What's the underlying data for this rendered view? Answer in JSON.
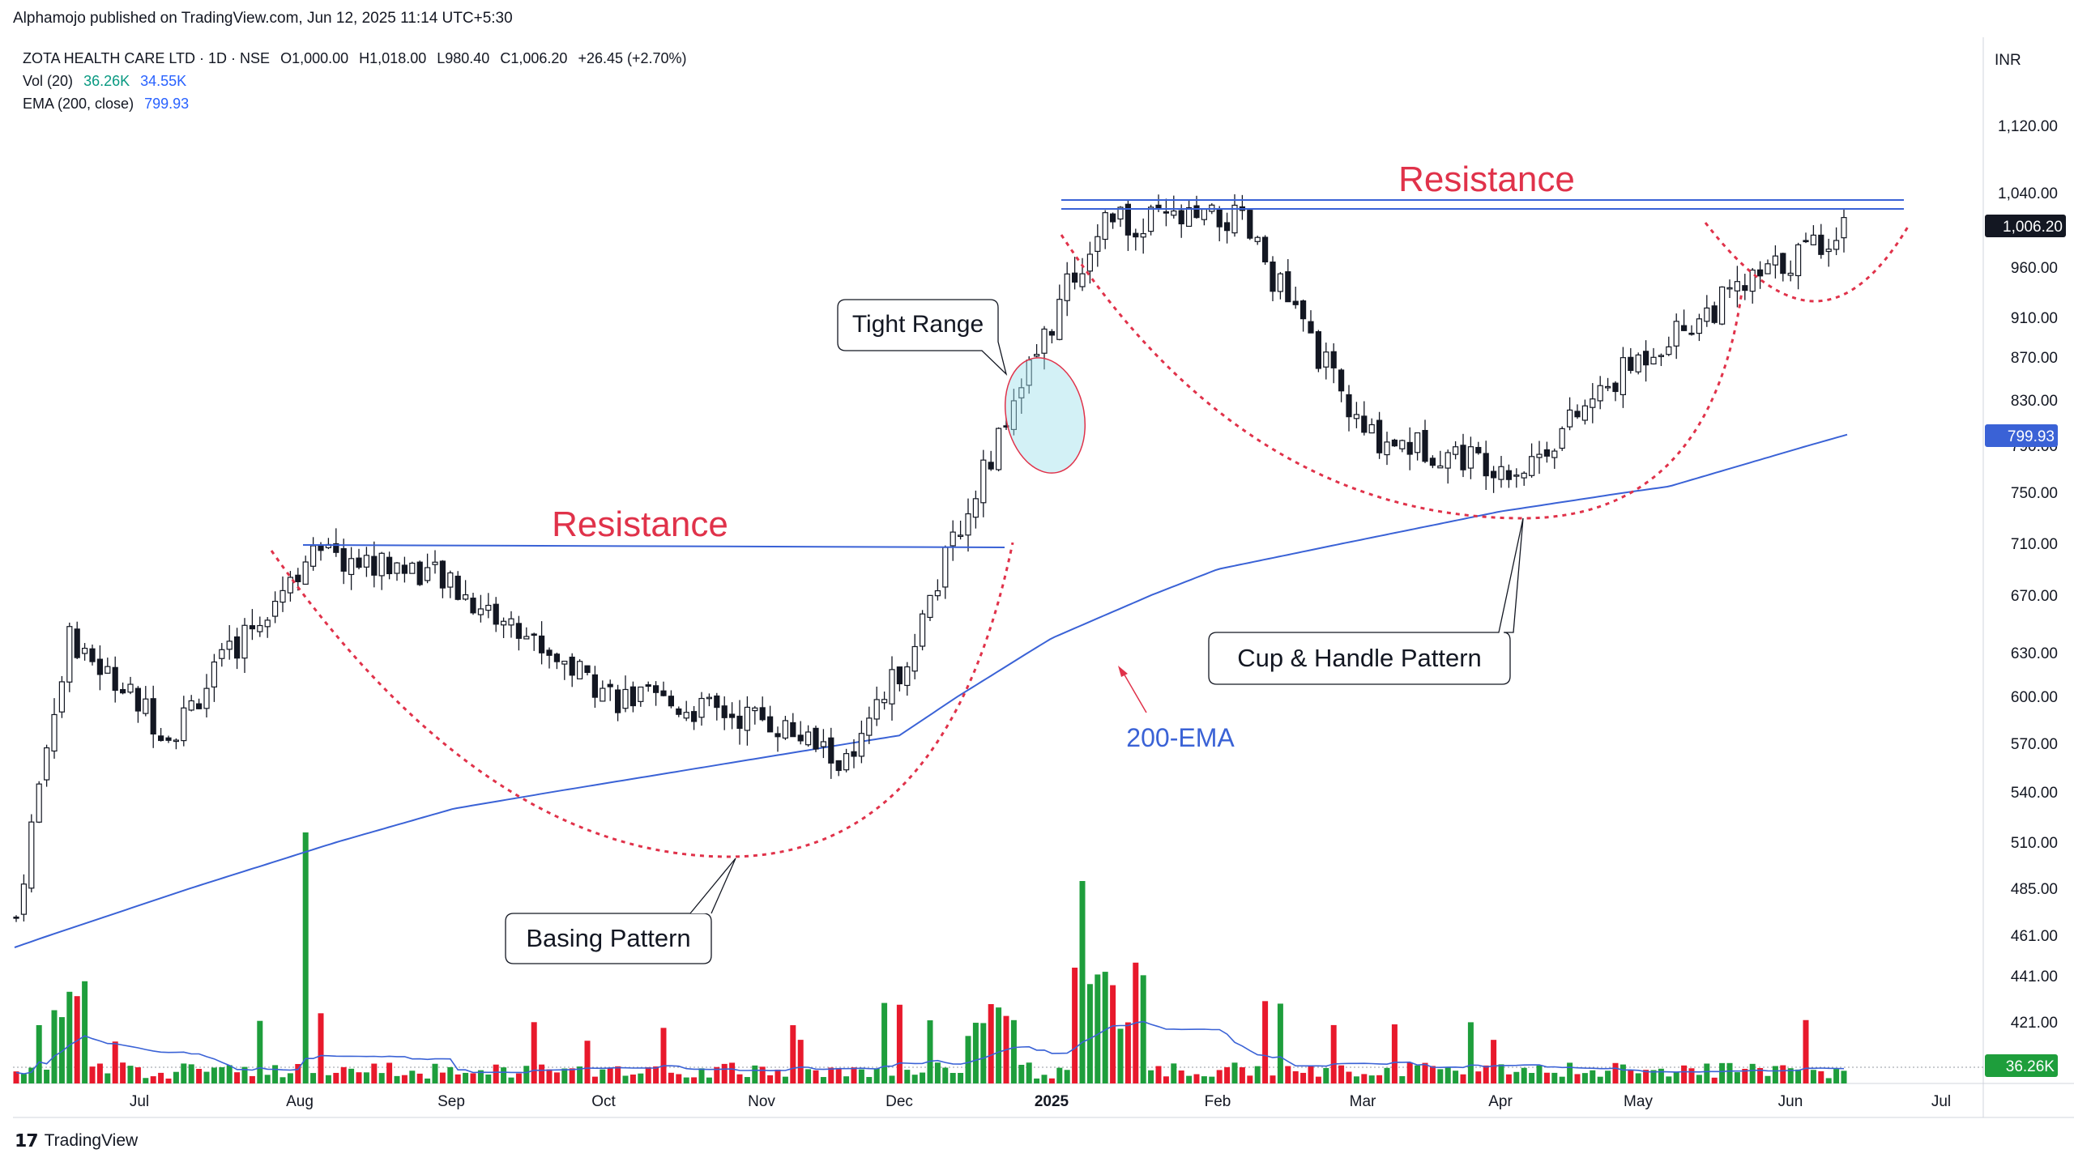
{
  "header": {
    "published": "Alphamojo published on TradingView.com, Jun 12, 2025 11:14 UTC+5:30"
  },
  "legend": {
    "symbol": "ZOTA HEALTH CARE LTD · 1D · NSE",
    "open": "O1,000.00",
    "high": "H1,018.00",
    "low": "L980.40",
    "close": "C1,006.20",
    "change": "+26.45 (+2.70%)",
    "vol_label": "Vol (20)",
    "vol_value": "36.26K",
    "vol_ma": "34.55K",
    "ema_label": "EMA (200, close)",
    "ema_value": "799.93"
  },
  "footer": {
    "brand": "TradingView"
  },
  "chart_data": {
    "type": "candlestick",
    "currency": "INR",
    "y_axis_ticks": [
      "1,120.00",
      "1,040.00",
      "960.00",
      "910.00",
      "870.00",
      "830.00",
      "790.00",
      "750.00",
      "710.00",
      "670.00",
      "630.00",
      "600.00",
      "570.00",
      "540.00",
      "510.00",
      "485.00",
      "461.00",
      "441.00",
      "421.00"
    ],
    "x_axis_ticks": [
      "Jul",
      "Aug",
      "Sep",
      "Oct",
      "Nov",
      "Dec",
      "2025",
      "Feb",
      "Mar",
      "Apr",
      "May",
      "Jun",
      "Jul"
    ],
    "last_price_label": "1,006.20",
    "ema_label": "799.93",
    "volume_label": "36.26K",
    "price_series_approx": [
      {
        "date": "Jun 2024",
        "close": 470
      },
      {
        "date": "late Jun",
        "close": 640
      },
      {
        "date": "Jul",
        "close": 575
      },
      {
        "date": "early Aug",
        "close": 700
      },
      {
        "date": "Sep",
        "close": 690
      },
      {
        "date": "Oct",
        "close": 600
      },
      {
        "date": "Nov",
        "close": 585
      },
      {
        "date": "late Nov",
        "close": 555
      },
      {
        "date": "Dec",
        "close": 640
      },
      {
        "date": "mid Dec",
        "close": 790
      },
      {
        "date": "early Jan",
        "close": 1010
      },
      {
        "date": "Feb",
        "close": 1010
      },
      {
        "date": "Mar",
        "close": 800
      },
      {
        "date": "Apr",
        "close": 770
      },
      {
        "date": "May",
        "close": 880
      },
      {
        "date": "Jun 12 2025",
        "close": 1006.2
      }
    ],
    "ema200_approx": [
      {
        "date": "Jun 2024",
        "value": 455
      },
      {
        "date": "Sep",
        "value": 530
      },
      {
        "date": "Dec",
        "value": 575
      },
      {
        "date": "2025",
        "value": 640
      },
      {
        "date": "Feb",
        "value": 690
      },
      {
        "date": "Apr",
        "value": 735
      },
      {
        "date": "May",
        "value": 755
      },
      {
        "date": "Jun 2025",
        "value": 799.93
      }
    ],
    "annotations": {
      "resistance_left": "Resistance",
      "resistance_right": "Resistance",
      "tight_range": "Tight Range",
      "basing_pattern": "Basing Pattern",
      "cup_handle": "Cup & Handle Pattern",
      "ema_tag": "200-EMA"
    },
    "colors": {
      "up": "#1e9e3c",
      "down": "#e8192c",
      "ema": "#3a62d6",
      "annotation_red": "#e0324a",
      "annotation_blue": "#3a62d6"
    }
  }
}
